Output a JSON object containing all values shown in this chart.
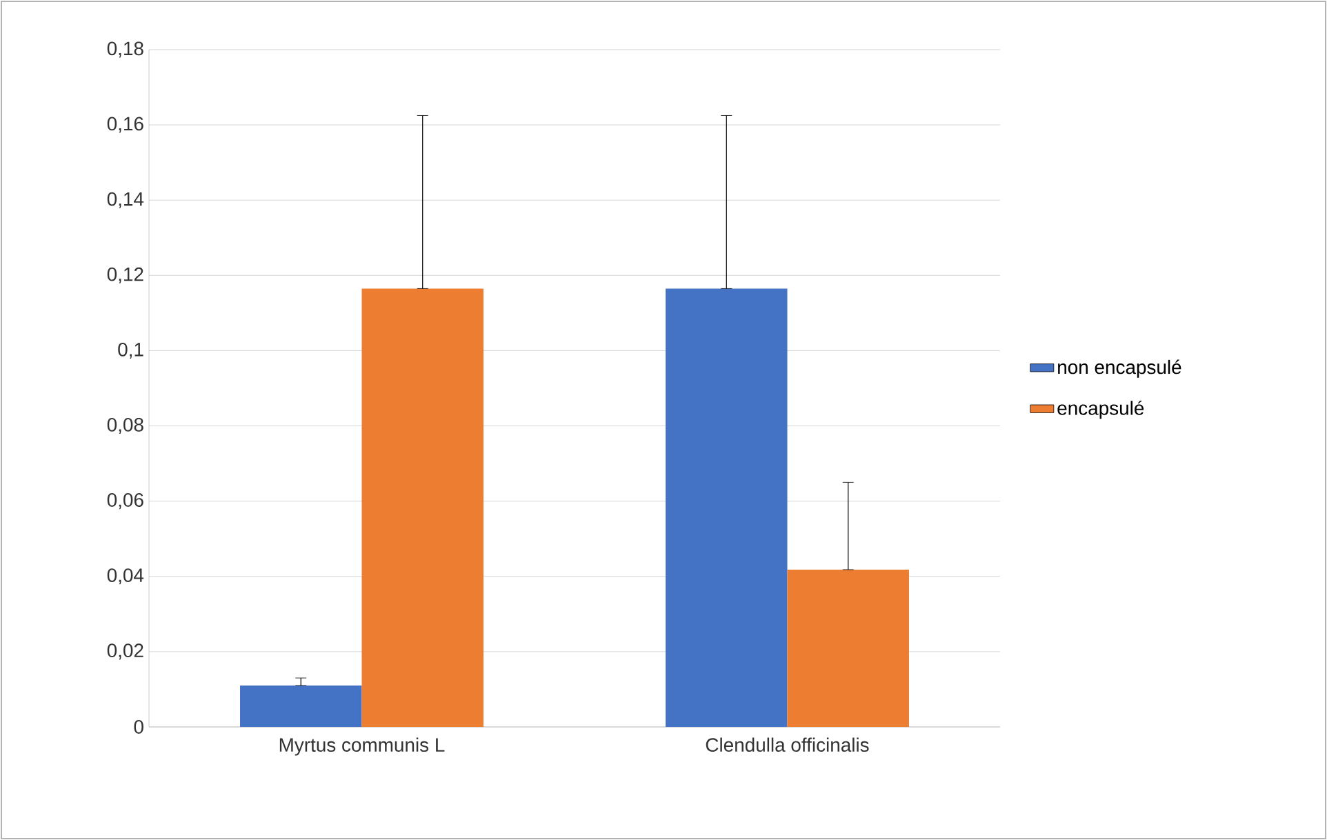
{
  "chart_data": {
    "type": "bar",
    "categories": [
      "Myrtus communis L",
      "Clendulla officinalis"
    ],
    "series": [
      {
        "name": "non encapsulé",
        "color": "#4472c4",
        "values": [
          0.011,
          0.1165
        ],
        "errors": [
          [
            0.011,
            0.013
          ],
          [
            0.1165,
            0.1625
          ]
        ]
      },
      {
        "name": "encapsulé",
        "color": "#ed7d31",
        "values": [
          0.1165,
          0.0418
        ],
        "errors": [
          [
            0.1165,
            0.1625
          ],
          [
            0.0418,
            0.065
          ]
        ]
      }
    ],
    "ylim": [
      0,
      0.18
    ],
    "yticks": [
      0,
      {
        "value": 0.02,
        "label": "0,02"
      },
      {
        "value": 0.04,
        "label": "0,04"
      },
      {
        "value": 0.06,
        "label": "0,06"
      },
      {
        "value": 0.08,
        "label": "0,08"
      },
      {
        "value": 0.1,
        "label": "0,1"
      },
      {
        "value": 0.12,
        "label": "0,12"
      },
      {
        "value": 0.14,
        "label": "0,14"
      },
      {
        "value": 0.16,
        "label": "0,16"
      },
      {
        "value": 0.18,
        "label": "0,18"
      }
    ],
    "grid": "y",
    "legend": "right"
  }
}
